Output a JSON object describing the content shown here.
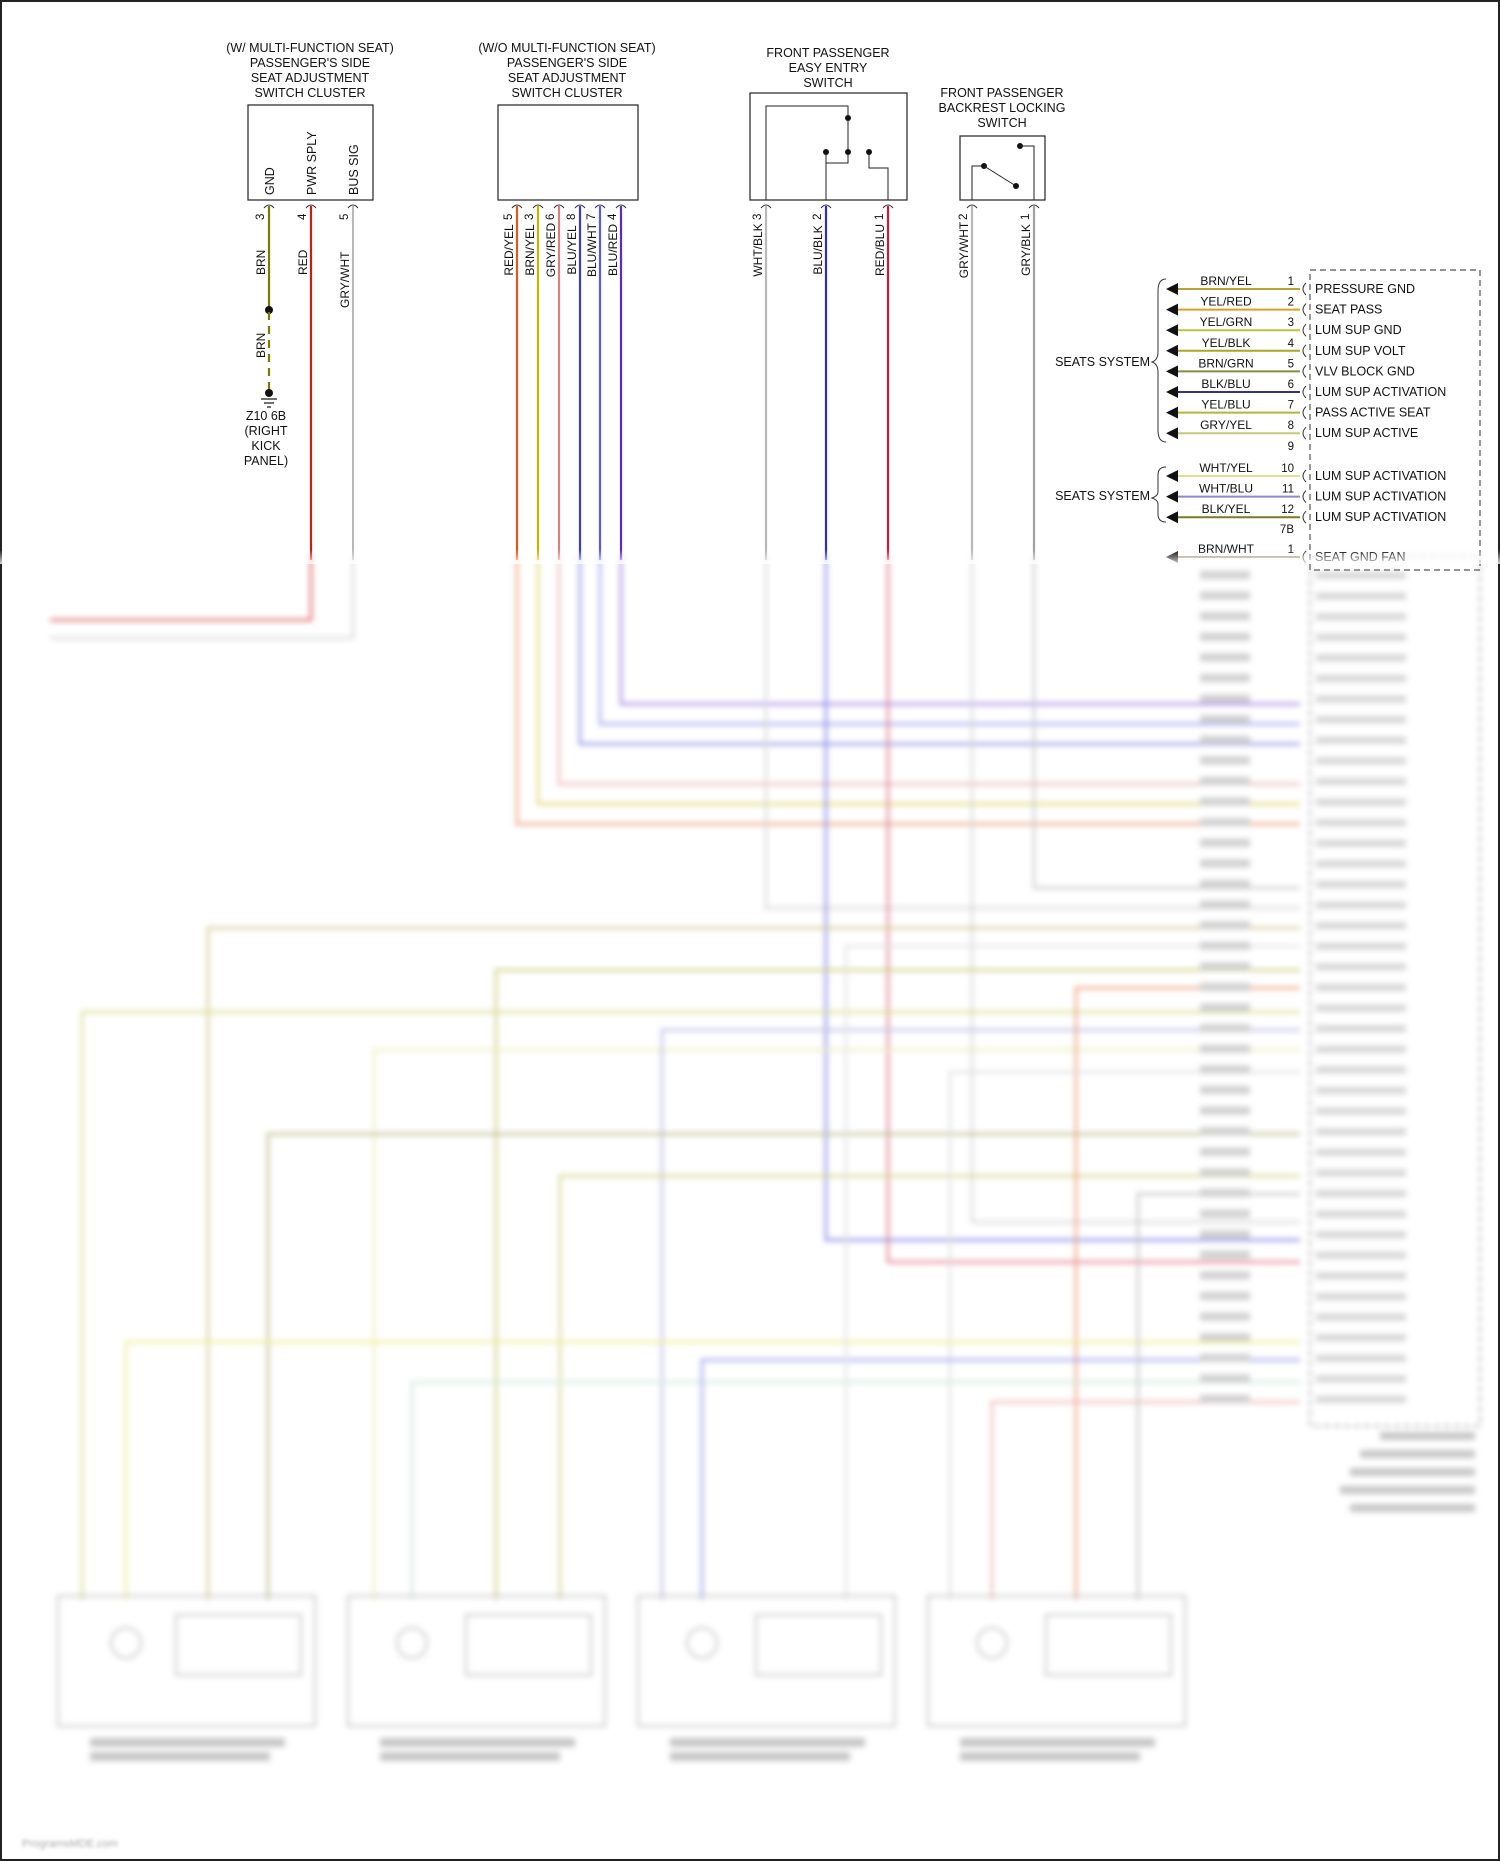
{
  "components": {
    "mfs_cluster": {
      "title": [
        "(W/ MULTI-FUNCTION SEAT)",
        "PASSENGER'S SIDE",
        "SEAT ADJUSTMENT",
        "SWITCH CLUSTER"
      ],
      "pins": [
        {
          "num": "3",
          "name": "GND",
          "wire": "BRN",
          "color": "#7a7a00"
        },
        {
          "num": "4",
          "name": "PWR SPLY",
          "wire": "RED",
          "color": "#cc1a1a"
        },
        {
          "num": "5",
          "name": "BUS SIG",
          "wire": "GRY/WHT",
          "color": "#b8b8b8"
        }
      ],
      "ground": {
        "wire": "BRN",
        "label": [
          "Z10 6B",
          "(RIGHT",
          "KICK",
          "PANEL)"
        ]
      }
    },
    "nomfs_cluster": {
      "title": [
        "(W/O MULTI-FUNCTION SEAT)",
        "PASSENGER'S SIDE",
        "SEAT ADJUSTMENT",
        "SWITCH CLUSTER"
      ],
      "pins": [
        {
          "num": "5",
          "wire": "RED/YEL",
          "color": "#e0571c"
        },
        {
          "num": "3",
          "wire": "BRN/YEL",
          "color": "#c8b400"
        },
        {
          "num": "6",
          "wire": "GRY/RED",
          "color": "#d98080"
        },
        {
          "num": "8",
          "wire": "BLU/YEL",
          "color": "#3a3ad0"
        },
        {
          "num": "7",
          "wire": "BLU/WHT",
          "color": "#5a5ae0"
        },
        {
          "num": "4",
          "wire": "BLU/RED",
          "color": "#5a2ad0"
        }
      ]
    },
    "easy_entry": {
      "title": [
        "FRONT PASSENGER",
        "EASY ENTRY",
        "SWITCH"
      ],
      "pins": [
        {
          "num": "3",
          "wire": "WHT/BLK",
          "color": "#b8b8b8"
        },
        {
          "num": "2",
          "wire": "BLU/BLK",
          "color": "#2a2ad0"
        },
        {
          "num": "1",
          "wire": "RED/BLU",
          "color": "#cc1a3a"
        }
      ]
    },
    "backrest": {
      "title": [
        "FRONT PASSENGER",
        "BACKREST LOCKING",
        "SWITCH"
      ],
      "pins": [
        {
          "num": "2",
          "wire": "GRY/WHT",
          "color": "#b8b8b8"
        },
        {
          "num": "1",
          "wire": "GRY/BLK",
          "color": "#a0a0a0"
        }
      ]
    }
  },
  "connector_7b": {
    "group_a": {
      "system": "SEATS SYSTEM",
      "rows": [
        {
          "num": "1",
          "wire": "BRN/YEL",
          "func": "PRESSURE GND",
          "color": "#b9a13a"
        },
        {
          "num": "2",
          "wire": "YEL/RED",
          "func": "SEAT PASS",
          "color": "#d9a020"
        },
        {
          "num": "3",
          "wire": "YEL/GRN",
          "func": "LUM SUP GND",
          "color": "#bcc43a"
        },
        {
          "num": "4",
          "wire": "YEL/BLK",
          "func": "LUM SUP VOLT",
          "color": "#a8a820"
        },
        {
          "num": "5",
          "wire": "BRN/GRN",
          "func": "VLV BLOCK GND",
          "color": "#8a8a3a"
        },
        {
          "num": "6",
          "wire": "BLK/BLU",
          "func": "LUM SUP ACTIVATION",
          "color": "#333388"
        },
        {
          "num": "7",
          "wire": "YEL/BLU",
          "func": "PASS ACTIVE SEAT",
          "color": "#b5b53a"
        },
        {
          "num": "8",
          "wire": "GRY/YEL",
          "func": "LUM SUP ACTIVE",
          "color": "#c8c87a"
        },
        {
          "num": "9",
          "wire": "",
          "func": "",
          "color": ""
        }
      ]
    },
    "group_b": {
      "system": "SEATS SYSTEM",
      "rows": [
        {
          "num": "10",
          "wire": "WHT/YEL",
          "func": "LUM SUP ACTIVATION",
          "color": "#e0e08a"
        },
        {
          "num": "11",
          "wire": "WHT/BLU",
          "func": "LUM SUP ACTIVATION",
          "color": "#8a8ad0"
        },
        {
          "num": "12",
          "wire": "BLK/YEL",
          "func": "LUM SUP ACTIVATION",
          "color": "#7a7a2a"
        }
      ],
      "connector": "7B"
    },
    "group_c": {
      "rows": [
        {
          "num": "1",
          "wire": "BRN/WHT",
          "func": "SEAT GND FAN",
          "color": "#b09a7a"
        }
      ]
    }
  },
  "footer": "ProgramsMDE.com"
}
